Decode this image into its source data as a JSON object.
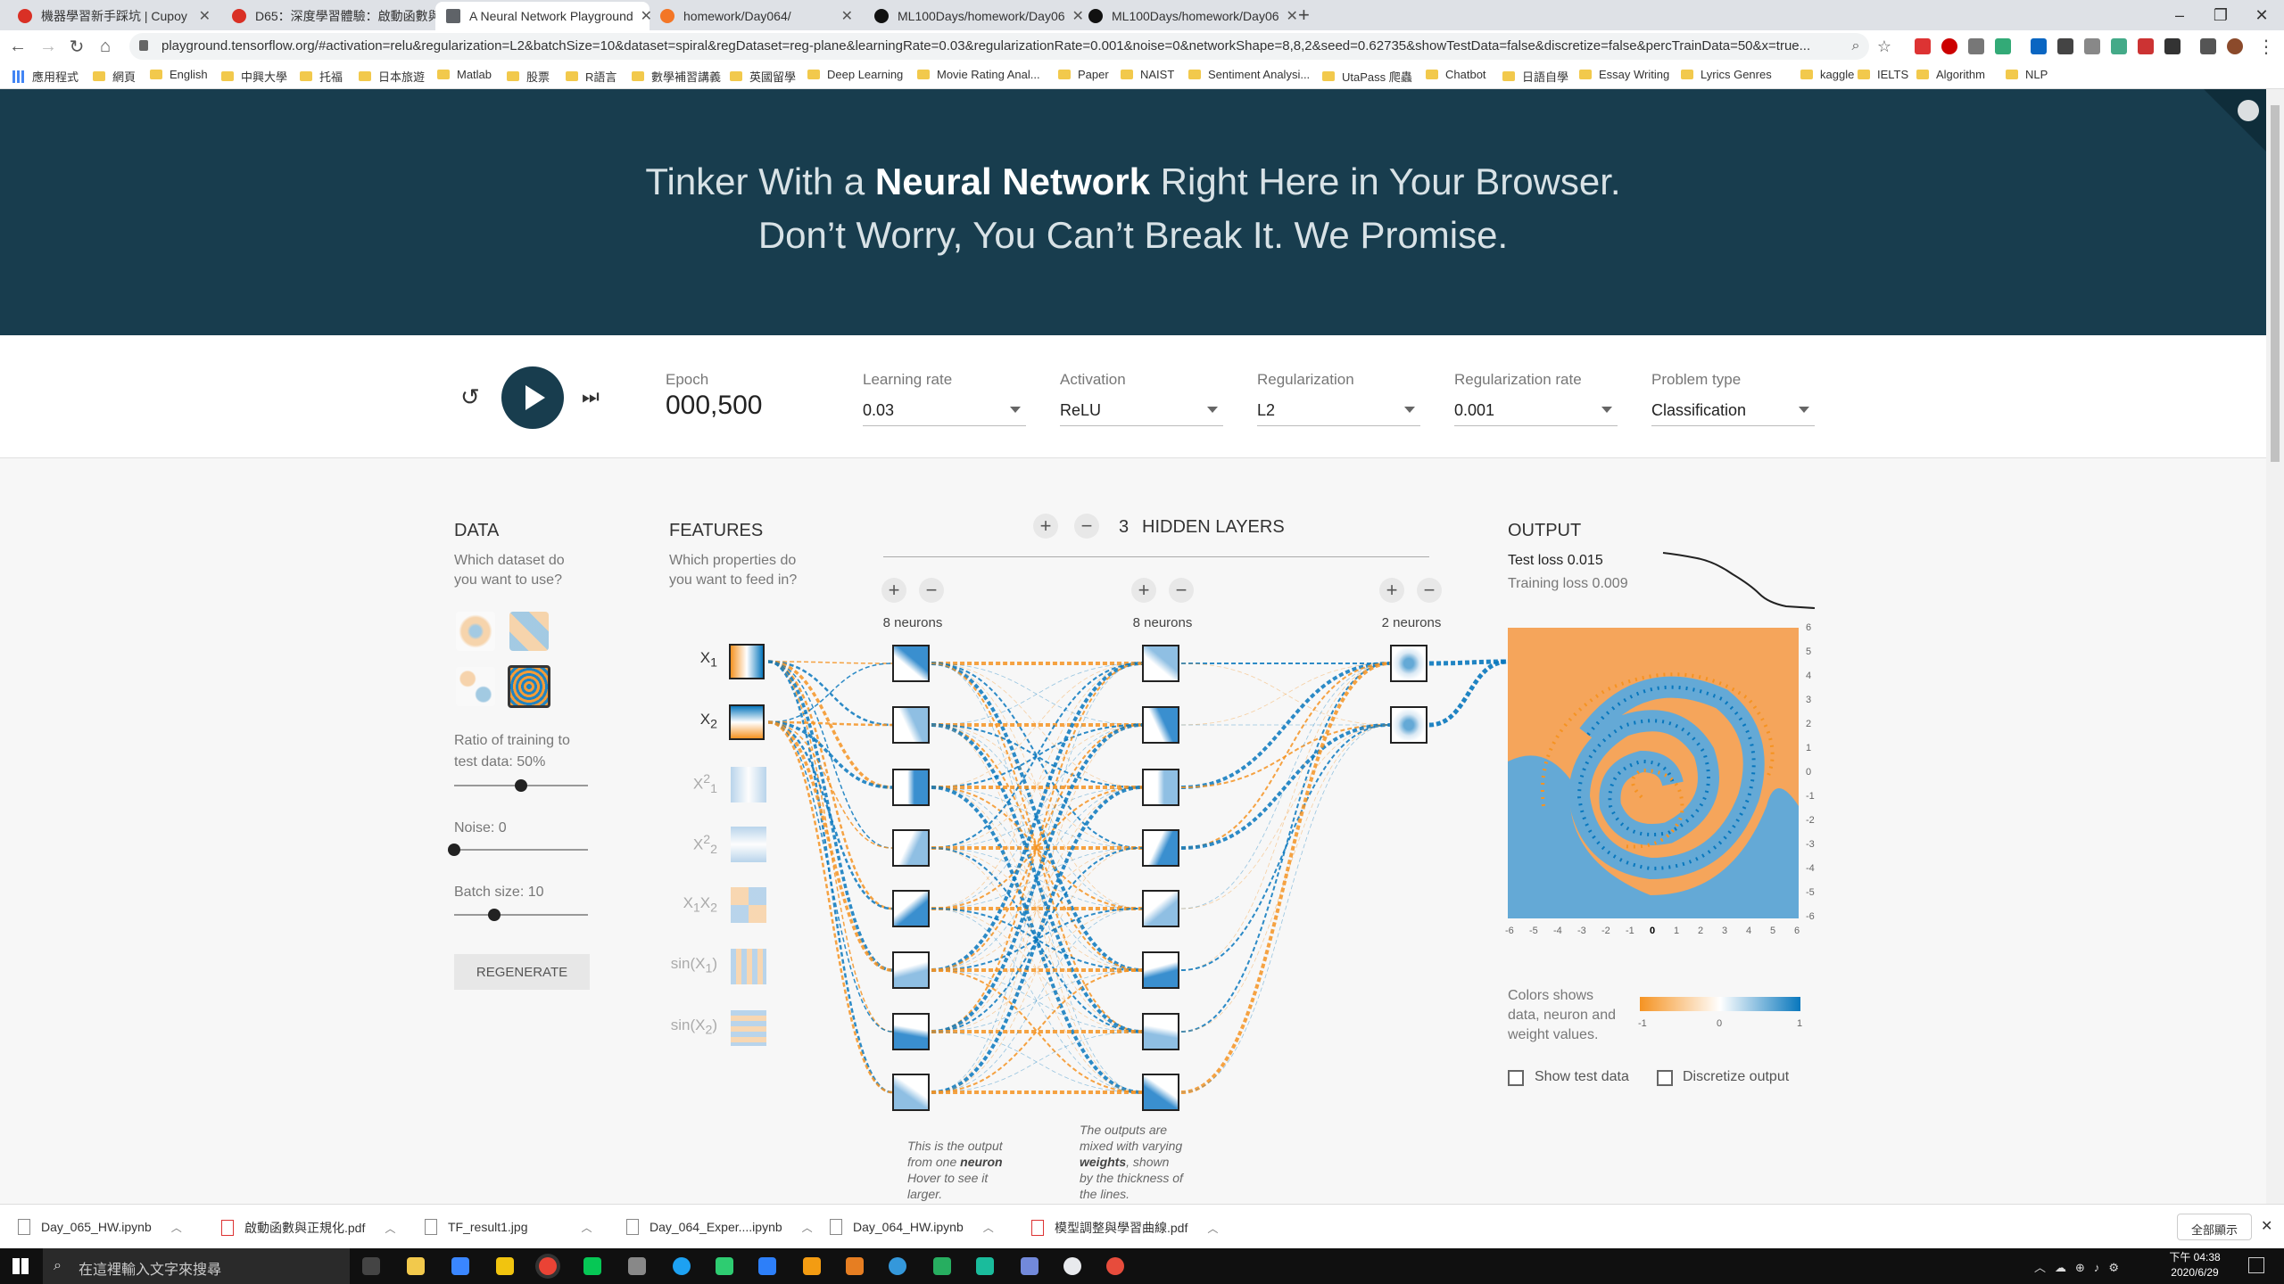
{
  "browser": {
    "tabs": [
      {
        "title": "機器學習新手踩坑 | Cupoy",
        "icon_color": "#d93025"
      },
      {
        "title": "D65：深度學習體驗：啟動函數與",
        "icon_color": "#d93025"
      },
      {
        "title": "A Neural Network Playground",
        "icon_color": "#5f6368"
      },
      {
        "title": "homework/Day064/",
        "icon_color": "#f37626"
      },
      {
        "title": "ML100Days/homework/Day06",
        "icon_color": "#111111"
      },
      {
        "title": "ML100Days/homework/Day06",
        "icon_color": "#111111"
      }
    ],
    "new_tab": "+",
    "url": "playground.tensorflow.org/#activation=relu&regularization=L2&batchSize=10&dataset=spiral&regDataset=reg-plane&learningRate=0.03&regularizationRate=0.001&noise=0&networkShape=8,8,2&seed=0.62735&showTestData=false&discretize=false&percTrainData=50&x=true...",
    "bookmarks": [
      "應用程式",
      "網頁",
      "English",
      "中興大學",
      "托福",
      "日本旅遊",
      "Matlab",
      "股票",
      "R語言",
      "數學補習講義",
      "英國留學",
      "Deep Learning",
      "Movie Rating Anal...",
      "Paper",
      "NAIST",
      "Sentiment Analysi...",
      "UtaPass 爬蟲",
      "Chatbot",
      "日語自學",
      "Essay Writing",
      "Lyrics Genres",
      "kaggle",
      "IELTS",
      "Algorithm",
      "NLP"
    ]
  },
  "header": {
    "line1_pre": "Tinker With a ",
    "line1_bold": "Neural Network",
    "line1_post": " Right Here in Your Browser.",
    "line2": "Don’t Worry, You Can’t Break It. We Promise."
  },
  "controls": {
    "epoch_label": "Epoch",
    "epoch_value": "000,500",
    "learning_rate_label": "Learning rate",
    "learning_rate_value": "0.03",
    "activation_label": "Activation",
    "activation_value": "ReLU",
    "regularization_label": "Regularization",
    "regularization_value": "L2",
    "reg_rate_label": "Regularization rate",
    "reg_rate_value": "0.001",
    "problem_label": "Problem type",
    "problem_value": "Classification"
  },
  "data_panel": {
    "title": "DATA",
    "question_1": "Which dataset do",
    "question_2": "you want to use?",
    "ratio_1": "Ratio of training to",
    "ratio_2": "test data:  50%",
    "ratio_value": 0.5,
    "noise_label": "Noise:  0",
    "noise_value": 0,
    "batch_label": "Batch size:  10",
    "batch_value": 0.3,
    "regenerate": "REGENERATE"
  },
  "features_panel": {
    "title": "FEATURES",
    "question_1": "Which properties do",
    "question_2": "you want to feed in?",
    "features": [
      {
        "base": "X",
        "sub": "1",
        "sup": "",
        "active": true
      },
      {
        "base": "X",
        "sub": "2",
        "sup": "",
        "active": true
      },
      {
        "base": "X",
        "sub": "1",
        "sup": "2",
        "active": false
      },
      {
        "base": "X",
        "sub": "2",
        "sup": "2",
        "active": false
      },
      {
        "base": "X",
        "sub": "1",
        "sup": "",
        "base2": "X",
        "sub2": "2",
        "active": false
      },
      {
        "base": "sin(X",
        "sub": "1",
        "sup": "",
        "close": ")",
        "active": false
      },
      {
        "base": "sin(X",
        "sub": "2",
        "sup": "",
        "close": ")",
        "active": false
      }
    ]
  },
  "network": {
    "hidden_layers_count": "3",
    "hidden_layers_label": "HIDDEN LAYERS",
    "plus": "+",
    "minus": "−",
    "layers": [
      {
        "neurons_label": "8 neurons",
        "count": 8
      },
      {
        "neurons_label": "8 neurons",
        "count": 8
      },
      {
        "neurons_label": "2 neurons",
        "count": 2
      }
    ],
    "note1_a": "This is the output",
    "note1_b": "from one ",
    "note1_bold": "neuron",
    "note1_c": "Hover to see it",
    "note1_d": "larger.",
    "note2_a": "The outputs are",
    "note2_b": "mixed with varying",
    "note2_bold": "weights",
    "note2_c": ", shown",
    "note2_d": "by the thickness of",
    "note2_e": "the lines."
  },
  "output_panel": {
    "title": "OUTPUT",
    "test_loss": "Test loss 0.015",
    "training_loss": "Training loss 0.009",
    "y_ticks": [
      "6",
      "5",
      "4",
      "3",
      "2",
      "1",
      "0",
      "-1",
      "-2",
      "-3",
      "-4",
      "-5",
      "-6"
    ],
    "x_ticks": [
      "-6",
      "-5",
      "-4",
      "-3",
      "-2",
      "-1",
      "0",
      "1",
      "2",
      "3",
      "4",
      "5",
      "6"
    ],
    "legend_1": "Colors shows",
    "legend_2": "data, neuron and",
    "legend_3": "weight values.",
    "legend_min": "-1",
    "legend_mid": "0",
    "legend_max": "1",
    "show_test": "Show test data",
    "discretize": "Discretize output",
    "colors": {
      "positive": "#0877bd",
      "negative": "#f59322",
      "blue_region": "#64a9d6",
      "orange_region": "#f5a55b"
    }
  },
  "downloads": {
    "items": [
      "Day_065_HW.ipynb",
      "啟動函數與正規化.pdf",
      "TF_result1.jpg",
      "Day_064_Exper....ipynb",
      "Day_064_HW.ipynb",
      "模型調整與學習曲線.pdf"
    ],
    "show_all": "全部顯示"
  },
  "taskbar": {
    "search_placeholder": "在這裡輸入文字來搜尋",
    "time": "下午 04:38",
    "date": "2020/6/29"
  }
}
